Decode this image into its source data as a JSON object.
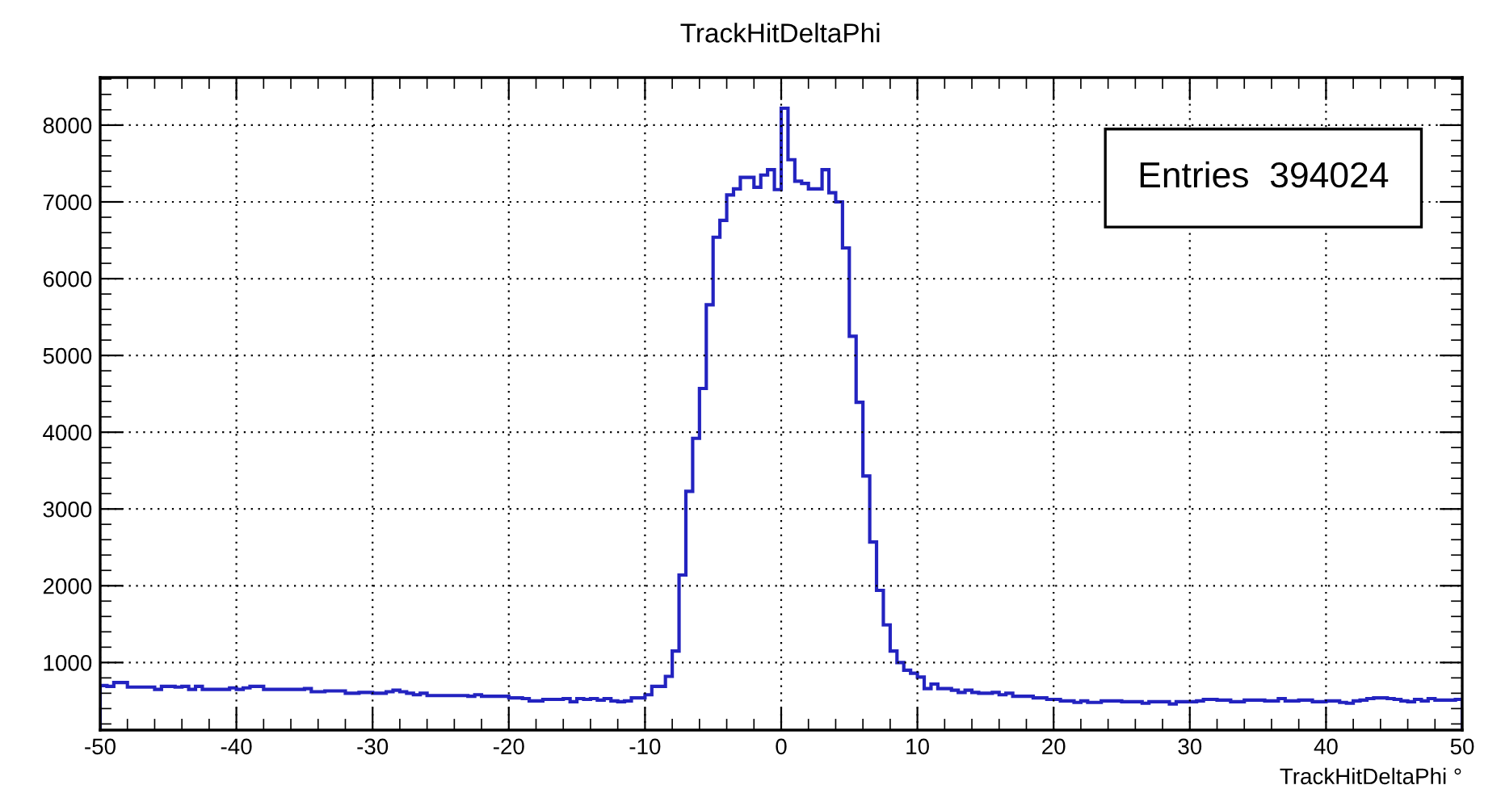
{
  "chart_data": {
    "type": "histogram",
    "title": "TrackHitDeltaPhi",
    "xlabel": "TrackHitDeltaPhi °",
    "color": "#2323c0",
    "bins": [
      -50,
      -49.5,
      -49,
      -48.5,
      -48,
      -47.5,
      -47,
      -46.5,
      -46,
      -45.5,
      -45,
      -44.5,
      -44,
      -43.5,
      -43,
      -42.5,
      -42,
      -41.5,
      -41,
      -40.5,
      -40,
      -39.5,
      -39,
      -38.5,
      -38,
      -37.5,
      -37,
      -36.5,
      -36,
      -35.5,
      -35,
      -34.5,
      -34,
      -33.5,
      -33,
      -32.5,
      -32,
      -31.5,
      -31,
      -30.5,
      -30,
      -29.5,
      -29,
      -28.5,
      -28,
      -27.5,
      -27,
      -26.5,
      -26,
      -25.5,
      -25,
      -24.5,
      -24,
      -23.5,
      -23,
      -22.5,
      -22,
      -21.5,
      -21,
      -20.5,
      -20,
      -19.5,
      -19,
      -18.5,
      -18,
      -17.5,
      -17,
      -16.5,
      -16,
      -15.5,
      -15,
      -14.5,
      -14,
      -13.5,
      -13,
      -12.5,
      -12,
      -11.5,
      -11,
      -10.5,
      -10,
      -9.5,
      -9,
      -8.5,
      -8,
      -7.5,
      -7,
      -6.5,
      -6,
      -5.5,
      -5,
      -4.5,
      -4,
      -3.5,
      -3,
      -2.5,
      -2,
      -1.5,
      -1,
      -0.5,
      0,
      0.5,
      1,
      1.5,
      2,
      2.5,
      3,
      3.5,
      4,
      4.5,
      5,
      5.5,
      6,
      6.5,
      7,
      7.5,
      8,
      8.5,
      9,
      9.5,
      10,
      10.5,
      11,
      11.5,
      12,
      12.5,
      13,
      13.5,
      14,
      14.5,
      15,
      15.5,
      16,
      16.5,
      17,
      17.5,
      18,
      18.5,
      19,
      19.5,
      20,
      20.5,
      21,
      21.5,
      22,
      22.5,
      23,
      23.5,
      24,
      24.5,
      25,
      25.5,
      26,
      26.5,
      27,
      27.5,
      28,
      28.5,
      29,
      29.5,
      30,
      30.5,
      31,
      31.5,
      32,
      32.5,
      33,
      33.5,
      34,
      34.5,
      35,
      35.5,
      36,
      36.5,
      37,
      37.5,
      38,
      38.5,
      39,
      39.5,
      40,
      40.5,
      41,
      41.5,
      42,
      42.5,
      43,
      43.5,
      44,
      44.5,
      45,
      45.5,
      46,
      46.5,
      47,
      47.5,
      48,
      48.5,
      49,
      49.5,
      50
    ],
    "values": [
      700,
      690,
      740,
      740,
      680,
      680,
      680,
      680,
      650,
      690,
      690,
      680,
      690,
      650,
      690,
      650,
      650,
      650,
      650,
      670,
      650,
      670,
      690,
      690,
      650,
      650,
      650,
      650,
      650,
      650,
      660,
      620,
      620,
      630,
      630,
      630,
      600,
      600,
      610,
      610,
      600,
      600,
      620,
      640,
      620,
      600,
      580,
      600,
      570,
      570,
      570,
      570,
      570,
      570,
      560,
      580,
      560,
      560,
      560,
      560,
      540,
      540,
      530,
      500,
      500,
      520,
      520,
      520,
      530,
      490,
      530,
      520,
      530,
      510,
      530,
      500,
      490,
      500,
      540,
      540,
      580,
      690,
      690,
      820,
      1150,
      2140,
      3230,
      3920,
      4570,
      5660,
      6540,
      6760,
      7090,
      7170,
      7320,
      7320,
      7190,
      7350,
      7420,
      7160,
      8220,
      7550,
      7270,
      7240,
      7170,
      7170,
      7420,
      7120,
      7000,
      6400,
      5250,
      4390,
      3430,
      2570,
      1940,
      1490,
      1150,
      1000,
      900,
      860,
      810,
      660,
      720,
      660,
      660,
      640,
      610,
      640,
      610,
      600,
      600,
      610,
      580,
      600,
      560,
      560,
      560,
      540,
      540,
      520,
      520,
      500,
      500,
      480,
      500,
      480,
      480,
      500,
      500,
      500,
      490,
      490,
      490,
      470,
      490,
      490,
      490,
      460,
      490,
      490,
      490,
      500,
      520,
      520,
      510,
      510,
      490,
      490,
      510,
      510,
      510,
      500,
      500,
      530,
      500,
      500,
      510,
      510,
      490,
      490,
      500,
      500,
      480,
      470,
      500,
      510,
      530,
      540,
      540,
      530,
      520,
      500,
      490,
      520,
      500,
      530,
      510,
      510,
      510,
      520
    ],
    "xlim": [
      -50,
      50
    ],
    "ylim": [
      120,
      8620
    ],
    "xticks": [
      -50,
      -40,
      -30,
      -20,
      -10,
      0,
      10,
      20,
      30,
      40,
      50
    ],
    "yticks": [
      1000,
      2000,
      3000,
      4000,
      5000,
      6000,
      7000,
      8000
    ],
    "grid": true,
    "annotations": [
      "Entries  394024"
    ]
  }
}
